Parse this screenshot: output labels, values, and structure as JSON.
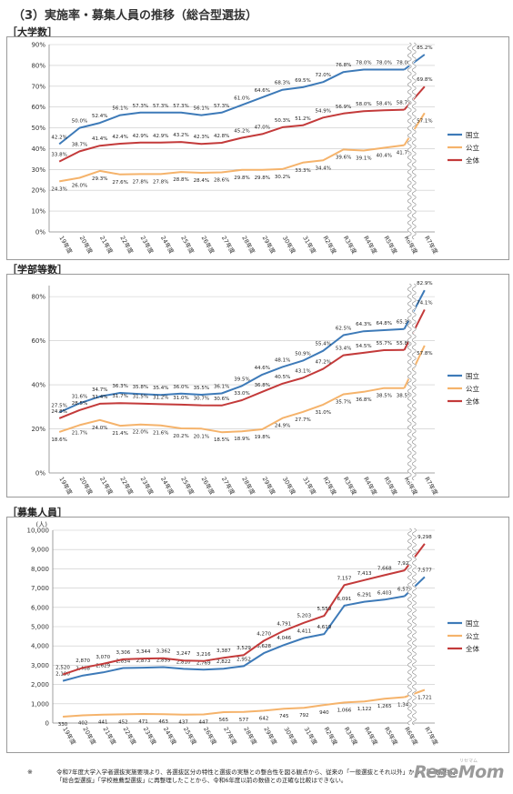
{
  "page": {
    "title": "（3）実施率・募集人員の推移（総合型選抜）",
    "footnote_mark": "※",
    "footnote": "令和7年度大学入学者選抜実施要項より、各選抜区分の特性と選抜の実態との整合性を図る観点から、従来の「一般選抜とそれ以外」から、「一般選抜」「総合型選抜」「学校推薦型選抜」に再整理したことから、令和6年度以前の数値との正確な比較はできない。",
    "logo": "ReseMom",
    "logo_sub": "リセマム"
  },
  "colors": {
    "national": "#3d7ab8",
    "public": "#f5b36b",
    "all": "#c33a3a",
    "axis": "#888888",
    "grid": "#c8c8c8"
  },
  "chart_data": [
    {
      "type": "line",
      "section_label": "［大学数］",
      "categories": [
        "19年度",
        "20年度",
        "21年度",
        "22年度",
        "23年度",
        "24年度",
        "25年度",
        "26年度",
        "27年度",
        "28年度",
        "29年度",
        "30年度",
        "31年度",
        "R2年度",
        "R3年度",
        "R4年度",
        "R5年度",
        "R6年度",
        "R7年度"
      ],
      "ylim": [
        0,
        90
      ],
      "yticks": [
        "0%",
        "10%",
        "20%",
        "30%",
        "40%",
        "50%",
        "60%",
        "70%",
        "80%",
        "90%"
      ],
      "grid": true,
      "break_after": "R6年度",
      "legend_position": "right",
      "series": [
        {
          "name": "国立",
          "key": "national",
          "values": [
            42.2,
            50.0,
            52.4,
            56.1,
            57.3,
            57.3,
            57.3,
            56.1,
            57.3,
            61.0,
            64.6,
            68.3,
            69.5,
            72.0,
            76.8,
            78.0,
            78.0,
            78.0,
            85.2
          ],
          "labels": [
            "42.2%",
            "50.0%",
            "52.4%",
            "56.1%",
            "57.3%",
            "57.3%",
            "57.3%",
            "56.1%",
            "57.3%",
            "61.0%",
            "64.6%",
            "68.3%",
            "69.5%",
            "72.0%",
            "76.8%",
            "78.0%",
            "78.0%",
            "78.0%",
            "85.2%"
          ]
        },
        {
          "name": "公立",
          "key": "public",
          "values": [
            24.3,
            26.0,
            29.3,
            27.6,
            27.8,
            27.8,
            28.8,
            28.4,
            28.6,
            29.8,
            29.8,
            30.2,
            33.3,
            34.4,
            39.6,
            39.1,
            40.4,
            41.7,
            57.1
          ],
          "labels": [
            "24.3%",
            "26.0%",
            "29.3%",
            "27.6%",
            "27.8%",
            "27.8%",
            "28.8%",
            "28.4%",
            "28.6%",
            "29.8%",
            "29.8%",
            "30.2%",
            "33.3%",
            "34.4%",
            "39.6%",
            "39.1%",
            "40.4%",
            "41.7%",
            "57.1%"
          ]
        },
        {
          "name": "全体",
          "key": "all",
          "values": [
            33.8,
            38.7,
            41.4,
            42.4,
            42.9,
            42.9,
            43.2,
            42.3,
            42.8,
            45.2,
            47.0,
            50.3,
            51.2,
            54.9,
            56.9,
            58.0,
            58.4,
            58.7,
            69.8
          ],
          "labels": [
            "33.8%",
            "38.7%",
            "41.4%",
            "42.4%",
            "42.9%",
            "42.9%",
            "43.2%",
            "42.3%",
            "42.8%",
            "45.2%",
            "47.0%",
            "50.3%",
            "51.2%",
            "54.9%",
            "56.9%",
            "58.0%",
            "58.4%",
            "58.7%",
            "69.8%"
          ]
        }
      ]
    },
    {
      "type": "line",
      "section_label": "［学部等数］",
      "categories": [
        "19年度",
        "20年度",
        "21年度",
        "22年度",
        "23年度",
        "24年度",
        "25年度",
        "26年度",
        "27年度",
        "28年度",
        "29年度",
        "30年度",
        "31年度",
        "R2年度",
        "R3年度",
        "R4年度",
        "R5年度",
        "R6年度",
        "R7年度"
      ],
      "ylim": [
        0,
        85
      ],
      "yticks": [
        "0%",
        "20%",
        "40%",
        "60%",
        "80%"
      ],
      "ytick_values": [
        0,
        20,
        40,
        60,
        80
      ],
      "grid": true,
      "break_after": "R6年度",
      "legend_position": "right",
      "series": [
        {
          "name": "国立",
          "key": "national",
          "values": [
            27.5,
            31.6,
            34.7,
            36.3,
            35.8,
            35.4,
            36.0,
            35.5,
            36.1,
            39.5,
            44.6,
            48.1,
            50.9,
            55.4,
            62.5,
            64.3,
            64.8,
            65.3,
            82.9
          ],
          "labels": [
            "27.5%",
            "31.6%",
            "34.7%",
            "36.3%",
            "35.8%",
            "35.4%",
            "36.0%",
            "35.5%",
            "36.1%",
            "39.5%",
            "44.6%",
            "48.1%",
            "50.9%",
            "55.4%",
            "62.5%",
            "64.3%",
            "64.8%",
            "65.3%",
            "82.9%"
          ]
        },
        {
          "name": "公立",
          "key": "public",
          "values": [
            18.6,
            21.7,
            24.0,
            21.4,
            22.0,
            21.6,
            20.2,
            20.1,
            18.5,
            18.9,
            19.8,
            24.9,
            27.7,
            31.0,
            35.7,
            36.8,
            38.5,
            38.5,
            57.8
          ],
          "labels": [
            "18.6%",
            "21.7%",
            "24.0%",
            "21.4%",
            "22.0%",
            "21.6%",
            "20.2%",
            "20.1%",
            "18.5%",
            "18.9%",
            "19.8%",
            "24.9%",
            "27.7%",
            "31.0%",
            "35.7%",
            "36.8%",
            "38.5%",
            "38.5%",
            "57.8%"
          ]
        },
        {
          "name": "全体",
          "key": "all",
          "values": [
            24.8,
            28.5,
            31.4,
            31.7,
            31.5,
            31.2,
            31.0,
            30.7,
            30.6,
            33.0,
            36.8,
            40.5,
            43.1,
            47.2,
            53.4,
            54.5,
            55.7,
            55.8,
            74.1
          ],
          "labels": [
            "24.8%",
            "28.5%",
            "31.4%",
            "31.7%",
            "31.5%",
            "31.2%",
            "31.0%",
            "30.7%",
            "30.6%",
            "33.0%",
            "36.8%",
            "40.5%",
            "43.1%",
            "47.2%",
            "53.4%",
            "54.5%",
            "55.7%",
            "55.8%",
            "74.1%"
          ]
        }
      ]
    },
    {
      "type": "line",
      "section_label": "［募集人員］",
      "unit": "(人)",
      "categories": [
        "19年度",
        "20年度",
        "21年度",
        "22年度",
        "23年度",
        "24年度",
        "25年度",
        "26年度",
        "27年度",
        "28年度",
        "29年度",
        "30年度",
        "31年度",
        "R2年度",
        "R3年度",
        "R4年度",
        "R5年度",
        "R6年度",
        "R7年度"
      ],
      "ylim": [
        0,
        10000
      ],
      "yticks": [
        "0",
        "1,000",
        "2,000",
        "3,000",
        "4,000",
        "5,000",
        "6,000",
        "7,000",
        "8,000",
        "9,000",
        "10,000"
      ],
      "grid": true,
      "break_after": "R6年度",
      "legend_position": "right",
      "series": [
        {
          "name": "国立",
          "key": "national",
          "values": [
            2190,
            2468,
            2629,
            2854,
            2873,
            2899,
            2810,
            2769,
            2822,
            2952,
            3628,
            4046,
            4411,
            4619,
            6091,
            6291,
            6403,
            6578,
            7577
          ],
          "labels": [
            "2,190",
            "2,468",
            "2,629",
            "2,854",
            "2,873",
            "2,899",
            "2,810",
            "2,769",
            "2,822",
            "2,952",
            "3,628",
            "4,046",
            "4,411",
            "4,619",
            "6,091",
            "6,291",
            "6,403",
            "6,578",
            "7,577"
          ]
        },
        {
          "name": "公立",
          "key": "public",
          "values": [
            330,
            402,
            441,
            452,
            471,
            463,
            437,
            447,
            565,
            577,
            642,
            745,
            792,
            940,
            1066,
            1122,
            1265,
            1342,
            1721
          ],
          "labels": [
            "330",
            "402",
            "441",
            "452",
            "471",
            "463",
            "437",
            "447",
            "565",
            "577",
            "642",
            "745",
            "792",
            "940",
            "1,066",
            "1,122",
            "1,265",
            "1,342",
            "1,721"
          ]
        },
        {
          "name": "全体",
          "key": "all",
          "values": [
            2520,
            2870,
            3070,
            3306,
            3344,
            3362,
            3247,
            3216,
            3387,
            3529,
            4270,
            4791,
            5203,
            5559,
            7157,
            7413,
            7668,
            7920,
            9298
          ],
          "labels": [
            "2,520",
            "2,870",
            "3,070",
            "3,306",
            "3,344",
            "3,362",
            "3,247",
            "3,216",
            "3,387",
            "3,529",
            "4,270",
            "4,791",
            "5,203",
            "5,559",
            "7,157",
            "7,413",
            "7,668",
            "7,920",
            "9,298"
          ]
        }
      ]
    }
  ]
}
